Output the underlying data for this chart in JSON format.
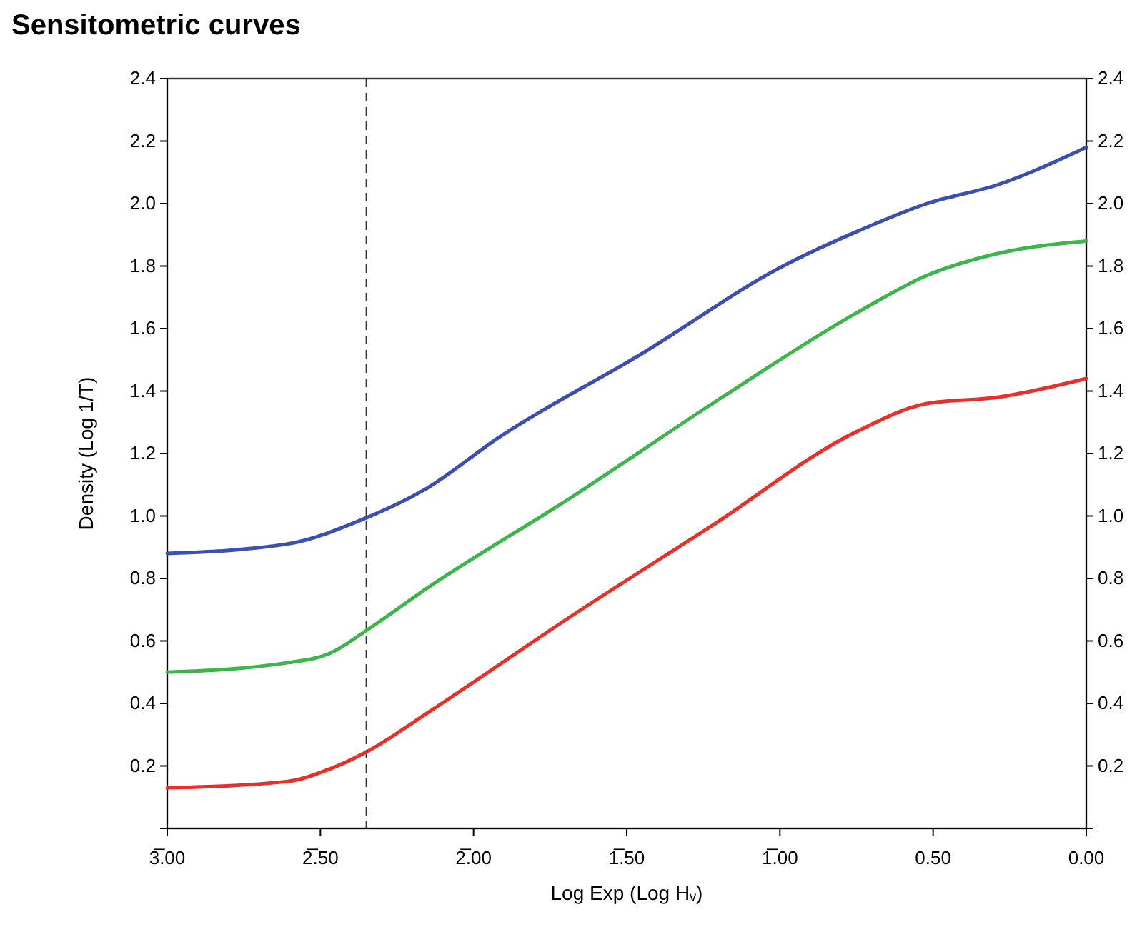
{
  "chart_data": {
    "type": "line",
    "title": "Sensitometric curves",
    "xlabel": "Log Exp (Log Hᵥ)",
    "ylabel": "Density (Log 1/T)",
    "xlim": [
      3.0,
      0.0
    ],
    "xticks": [
      {
        "value": 3.0,
        "label": "3̅.00"
      },
      {
        "value": 2.5,
        "label": "2̅.50"
      },
      {
        "value": 2.0,
        "label": "2̅.00"
      },
      {
        "value": 1.5,
        "label": "1̅.50"
      },
      {
        "value": 1.0,
        "label": "1̅.00"
      },
      {
        "value": 0.5,
        "label": "0.50"
      },
      {
        "value": 0.0,
        "label": "0.00"
      }
    ],
    "ylim": [
      0,
      2.4
    ],
    "yticks": [
      0.2,
      0.4,
      0.6,
      0.8,
      {
        "value": 1,
        "label": "1.0"
      },
      1.2,
      1.4,
      1.6,
      1.8,
      {
        "value": 2,
        "label": "2.0"
      },
      2.2,
      2.4
    ],
    "y2lim": [
      0,
      2.4
    ],
    "y2ticks": [
      0.2,
      0.4,
      0.6,
      0.8,
      {
        "value": 1,
        "label": "1.0"
      },
      1.2,
      1.4,
      1.6,
      1.8,
      {
        "value": 2,
        "label": "2.0"
      },
      2.2,
      2.4
    ],
    "grid": false,
    "marker": "none",
    "line_style": "solid",
    "series": [
      {
        "color": "#3a4fb0",
        "x": [
          3.0,
          2.61,
          2.36,
          2.15,
          1.92,
          1.45,
          0.99,
          0.75,
          0.52,
          0.29,
          0.0
        ],
        "values": [
          0.88,
          0.91,
          0.99,
          1.09,
          1.25,
          1.52,
          1.8,
          1.91,
          2.0,
          2.06,
          2.18
        ]
      },
      {
        "color": "#3cb54a",
        "x": [
          3.0,
          2.61,
          2.47,
          2.34,
          2.15,
          1.68,
          1.22,
          0.75,
          0.52,
          0.29,
          0.0
        ],
        "values": [
          0.5,
          0.53,
          0.56,
          0.64,
          0.77,
          1.06,
          1.36,
          1.65,
          1.77,
          1.84,
          1.88
        ]
      },
      {
        "color": "#e8302a",
        "x": [
          3.0,
          2.61,
          2.47,
          2.34,
          2.15,
          1.68,
          1.22,
          0.75,
          0.52,
          0.29,
          0.0
        ],
        "values": [
          0.13,
          0.15,
          0.19,
          0.25,
          0.37,
          0.68,
          0.97,
          1.27,
          1.36,
          1.38,
          1.44
        ]
      }
    ],
    "ref_lines": [
      {
        "axis": "x",
        "value": 2.35,
        "color": "#333333",
        "line_style": "dashed"
      }
    ]
  }
}
